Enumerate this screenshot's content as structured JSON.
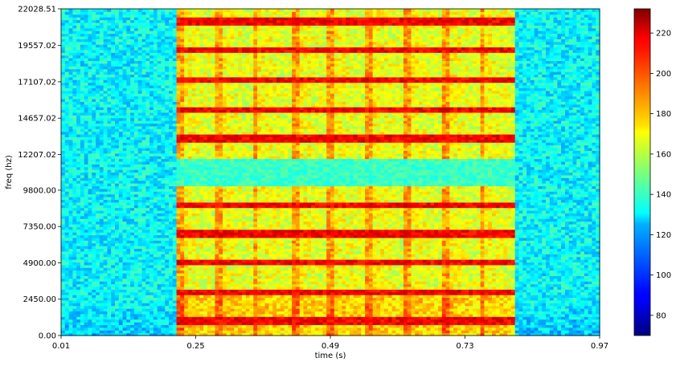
{
  "chart_data": {
    "type": "heatmap",
    "title": "",
    "xlabel": "time (s)",
    "ylabel": "freq (hz)",
    "x_ticks": [
      "0.01",
      "0.25",
      "0.49",
      "0.73",
      "0.97"
    ],
    "x_tick_values": [
      0.01,
      0.25,
      0.49,
      0.73,
      0.97
    ],
    "y_ticks": [
      "0.00",
      "2450.00",
      "4900.00",
      "7350.00",
      "9800.00",
      "12207.02",
      "14657.02",
      "17107.02",
      "19557.02",
      "22028.51"
    ],
    "y_tick_values": [
      0.0,
      2450.0,
      4900.0,
      7350.0,
      9800.0,
      12207.02,
      14657.02,
      17107.02,
      19557.02,
      22028.51
    ],
    "xlim": [
      0.01,
      0.97
    ],
    "ylim": [
      0.0,
      22028.51
    ],
    "colormap": "jet",
    "colorbar": {
      "range": [
        70,
        232
      ],
      "ticks": [
        "80",
        "100",
        "120",
        "140",
        "160",
        "180",
        "200",
        "220"
      ],
      "tick_values": [
        80,
        100,
        120,
        140,
        160,
        180,
        200,
        220
      ]
    },
    "background_level": 130,
    "signal_time_range": [
      0.215,
      0.82
    ],
    "signal_level": 185,
    "dip_band_hz": [
      10100,
      12000
    ],
    "dip_band_level": 140,
    "pulse_onsets_s": [
      0.215,
      0.283,
      0.35,
      0.42,
      0.485,
      0.553,
      0.62,
      0.69,
      0.755
    ],
    "harmonic_lines_hz": [
      1000,
      2950,
      4900,
      6880,
      8850,
      13300,
      15250,
      17200,
      19200,
      21200
    ],
    "harmonic_line_level": 205,
    "grid": false
  }
}
